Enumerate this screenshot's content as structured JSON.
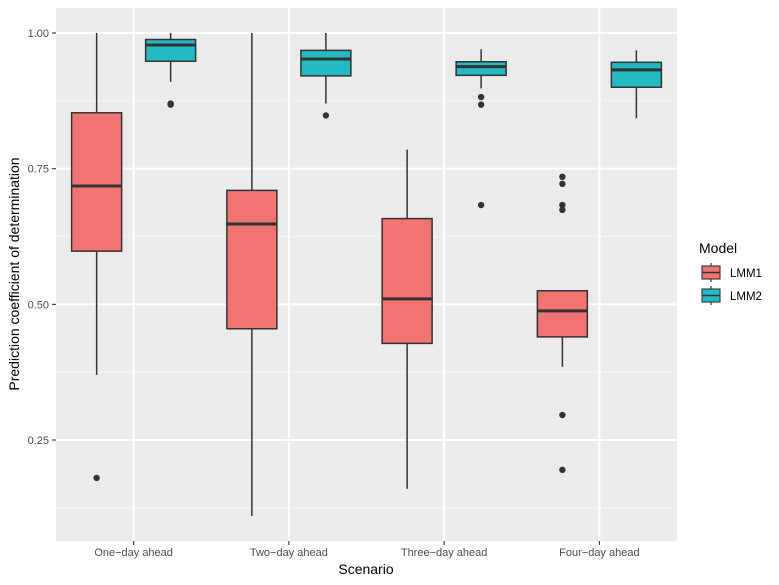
{
  "chart_data": {
    "type": "boxplot",
    "title": "",
    "xlabel": "Scenario",
    "ylabel": "Prediction coefficient of determination",
    "ylim": [
      0.1,
      1.04
    ],
    "yticks": [
      0.25,
      0.5,
      0.75,
      1.0
    ],
    "ytick_labels": [
      "0.25",
      "0.50",
      "0.75",
      "1.00"
    ],
    "grid": true,
    "legend": {
      "title": "Model",
      "position": "right"
    },
    "categories": [
      "One−day ahead",
      "Two−day ahead",
      "Three−day ahead",
      "Four−day ahead"
    ],
    "series": [
      {
        "name": "LMM1",
        "color": "#f07572",
        "boxes": [
          {
            "whisker_low": 0.37,
            "q1": 0.598,
            "median": 0.718,
            "q3": 0.853,
            "whisker_high": 1.0,
            "outliers": [
              0.18
            ]
          },
          {
            "whisker_low": 0.11,
            "q1": 0.455,
            "median": 0.648,
            "q3": 0.71,
            "whisker_high": 1.0,
            "outliers": []
          },
          {
            "whisker_low": 0.16,
            "q1": 0.428,
            "median": 0.51,
            "q3": 0.658,
            "whisker_high": 0.785,
            "outliers": []
          },
          {
            "whisker_low": 0.385,
            "q1": 0.44,
            "median": 0.488,
            "q3": 0.525,
            "whisker_high": 0.525,
            "outliers": [
              0.735,
              0.722,
              0.683,
              0.674,
              0.296,
              0.195
            ]
          }
        ]
      },
      {
        "name": "LMM2",
        "color": "#25b9c2",
        "boxes": [
          {
            "whisker_low": 0.91,
            "q1": 0.948,
            "median": 0.978,
            "q3": 0.988,
            "whisker_high": 1.0,
            "outliers": [
              0.87,
              0.868
            ]
          },
          {
            "whisker_low": 0.87,
            "q1": 0.921,
            "median": 0.952,
            "q3": 0.968,
            "whisker_high": 1.0,
            "outliers": [
              0.848
            ]
          },
          {
            "whisker_low": 0.898,
            "q1": 0.922,
            "median": 0.938,
            "q3": 0.947,
            "whisker_high": 0.97,
            "outliers": [
              0.882,
              0.868,
              0.683
            ]
          },
          {
            "whisker_low": 0.843,
            "q1": 0.9,
            "median": 0.932,
            "q3": 0.946,
            "whisker_high": 0.968,
            "outliers": []
          }
        ]
      }
    ]
  }
}
